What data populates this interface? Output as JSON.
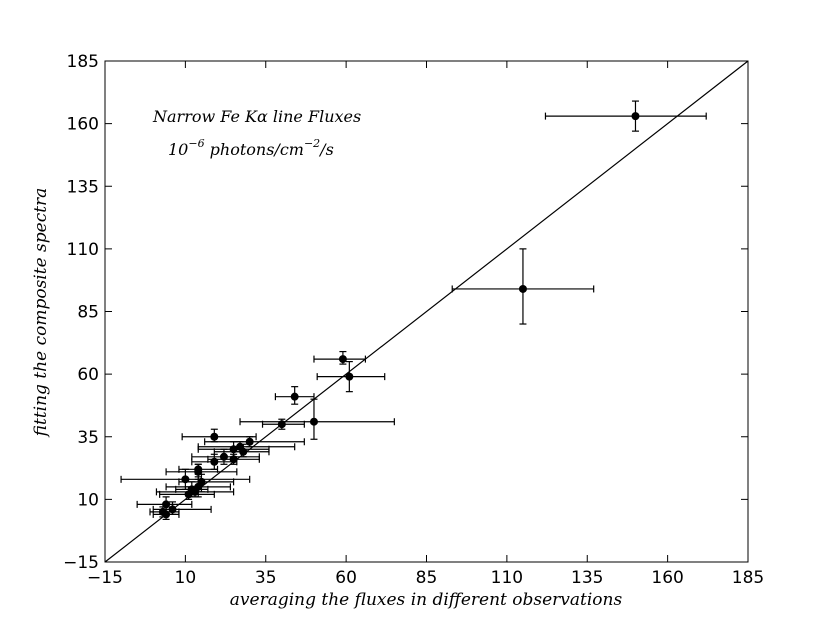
{
  "chart_data": {
    "type": "scatter",
    "title": "",
    "annotation": {
      "line1": "Narrow Fe Kα line Fluxes",
      "line2_base": "10",
      "line2_exp": "−6",
      "line2_unit_a": " photons/cm",
      "line2_exp2": "−2",
      "line2_unit_b": "/s"
    },
    "xlabel": "averaging the fluxes in different observations",
    "ylabel": "fitting the composite spectra",
    "xlim": [
      -15,
      185
    ],
    "ylim": [
      -15,
      185
    ],
    "xticks": [
      -15,
      10,
      35,
      60,
      85,
      110,
      135,
      160,
      185
    ],
    "yticks": [
      -15,
      10,
      35,
      60,
      85,
      110,
      135,
      160,
      185
    ],
    "tick_labels": {
      "x": [
        "−15",
        "10",
        "35",
        "60",
        "85",
        "110",
        "135",
        "160",
        "185"
      ],
      "y": [
        "−15",
        "10",
        "35",
        "60",
        "85",
        "110",
        "135",
        "160",
        "185"
      ]
    },
    "reference_line": {
      "x": [
        -15,
        185
      ],
      "y": [
        -15,
        185
      ]
    },
    "grid": false,
    "points": [
      {
        "x": 150,
        "y": 163,
        "xerr": [
          28,
          22
        ],
        "yerr": [
          6,
          6
        ]
      },
      {
        "x": 115,
        "y": 94,
        "xerr": [
          22,
          22
        ],
        "yerr": [
          14,
          16
        ]
      },
      {
        "x": 59,
        "y": 66,
        "xerr": [
          9,
          7
        ],
        "yerr": [
          2,
          3
        ]
      },
      {
        "x": 61,
        "y": 59,
        "xerr": [
          10,
          11
        ],
        "yerr": [
          6,
          6
        ]
      },
      {
        "x": 44,
        "y": 51,
        "xerr": [
          6,
          6
        ],
        "yerr": [
          3,
          4
        ]
      },
      {
        "x": 40,
        "y": 40,
        "xerr": [
          6,
          7
        ],
        "yerr": [
          2,
          2
        ]
      },
      {
        "x": 50,
        "y": 41,
        "xerr": [
          23,
          25
        ],
        "yerr": [
          7,
          9
        ]
      },
      {
        "x": 19,
        "y": 35,
        "xerr": [
          10,
          13
        ],
        "yerr": [
          2,
          3
        ]
      },
      {
        "x": 30,
        "y": 33,
        "xerr": [
          14,
          17
        ],
        "yerr": [
          2,
          2
        ]
      },
      {
        "x": 27,
        "y": 31,
        "xerr": [
          13,
          17
        ],
        "yerr": [
          2,
          2
        ]
      },
      {
        "x": 25,
        "y": 30,
        "xerr": [
          11,
          11
        ],
        "yerr": [
          3,
          3
        ]
      },
      {
        "x": 28,
        "y": 29,
        "xerr": [
          9,
          8
        ],
        "yerr": [
          2,
          3
        ]
      },
      {
        "x": 22,
        "y": 27,
        "xerr": [
          10,
          11
        ],
        "yerr": [
          3,
          3
        ]
      },
      {
        "x": 25,
        "y": 26,
        "xerr": [
          8,
          8
        ],
        "yerr": [
          2,
          2
        ]
      },
      {
        "x": 19,
        "y": 25,
        "xerr": [
          7,
          7
        ],
        "yerr": [
          3,
          3
        ]
      },
      {
        "x": 14,
        "y": 21,
        "xerr": [
          10,
          12
        ],
        "yerr": [
          3,
          3
        ]
      },
      {
        "x": 14,
        "y": 22,
        "xerr": [
          6,
          6
        ],
        "yerr": [
          2,
          2
        ]
      },
      {
        "x": 10,
        "y": 18,
        "xerr": [
          20,
          20
        ],
        "yerr": [
          4,
          4
        ]
      },
      {
        "x": 15,
        "y": 17,
        "xerr": [
          7,
          10
        ],
        "yerr": [
          4,
          3
        ]
      },
      {
        "x": 14,
        "y": 15,
        "xerr": [
          10,
          10
        ],
        "yerr": [
          4,
          4
        ]
      },
      {
        "x": 12,
        "y": 14,
        "xerr": [
          5,
          5
        ],
        "yerr": [
          3,
          3
        ]
      },
      {
        "x": 13,
        "y": 13,
        "xerr": [
          12,
          12
        ],
        "yerr": [
          2,
          2
        ]
      },
      {
        "x": 11,
        "y": 12,
        "xerr": [
          9,
          8
        ],
        "yerr": [
          2,
          3
        ]
      },
      {
        "x": 4,
        "y": 8,
        "xerr": [
          9,
          8
        ],
        "yerr": [
          4,
          3
        ]
      },
      {
        "x": 6,
        "y": 6,
        "xerr": [
          6,
          12
        ],
        "yerr": [
          2,
          3
        ]
      },
      {
        "x": 3,
        "y": 5,
        "xerr": [
          4,
          5
        ],
        "yerr": [
          2,
          2
        ]
      },
      {
        "x": 4,
        "y": 4,
        "xerr": [
          4,
          4
        ],
        "yerr": [
          2,
          3
        ]
      }
    ]
  }
}
